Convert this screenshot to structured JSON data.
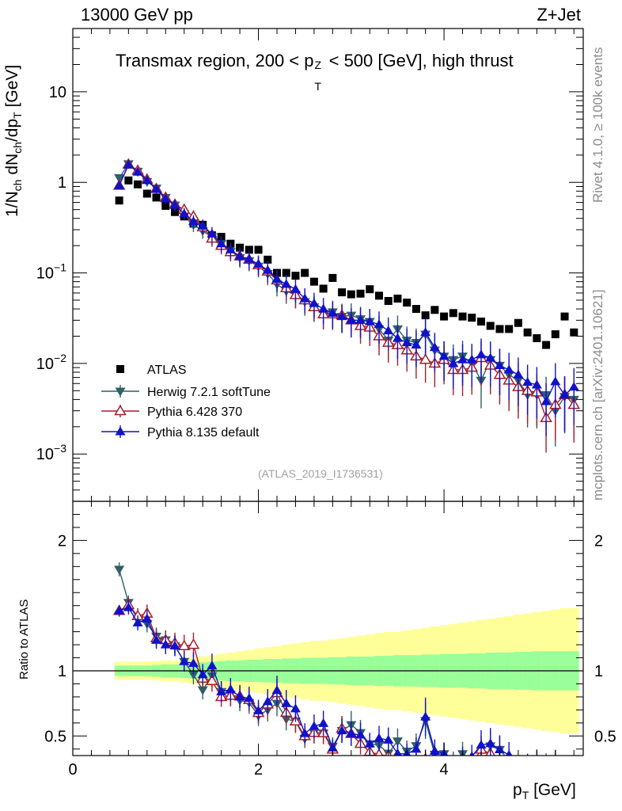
{
  "header": {
    "left": "13000 GeV pp",
    "right": "Z+Jet"
  },
  "side": {
    "rivet": "Rivet 4.1.0, ≥ 100k events",
    "mcplots": "mcplots.cern.ch [arXiv:2401.10621]"
  },
  "chart_data": {
    "type": "scatter",
    "title": "Transmax region, 200 < p_T^Z < 500 [GeV], high thrust",
    "xlabel": "p_T [GeV]",
    "ylabel": "1/N_ch dN_ch/dp_T [GeV]",
    "ratio_ylabel": "Ratio to ATLAS",
    "analysis_id": "(ATLAS_2019_I1736531)",
    "xlim": [
      0,
      5.5
    ],
    "ylim": [
      0.0003,
      50
    ],
    "ratio_ylim": [
      0.35,
      2.3
    ],
    "x_ticks": [
      "0",
      "2",
      "4"
    ],
    "y_ticks": [
      "10^-3",
      "10^-2",
      "10^-1",
      "1",
      "10"
    ],
    "ratio_ticks": [
      "0.5",
      "1",
      "2"
    ],
    "x": [
      0.5,
      0.6,
      0.7,
      0.8,
      0.9,
      1.0,
      1.1,
      1.2,
      1.3,
      1.4,
      1.5,
      1.6,
      1.7,
      1.8,
      1.9,
      2.0,
      2.1,
      2.2,
      2.3,
      2.4,
      2.5,
      2.6,
      2.7,
      2.8,
      2.9,
      3.0,
      3.1,
      3.2,
      3.3,
      3.4,
      3.5,
      3.6,
      3.7,
      3.8,
      3.9,
      4.0,
      4.1,
      4.2,
      4.3,
      4.4,
      4.5,
      4.6,
      4.7,
      4.8,
      4.9,
      5.0,
      5.1,
      5.2,
      5.3,
      5.4
    ],
    "series": [
      {
        "name": "ATLAS",
        "color": "#000000",
        "marker": "square",
        "values": [
          0.63,
          1.05,
          0.95,
          0.75,
          0.68,
          0.55,
          0.47,
          0.42,
          0.35,
          0.34,
          0.26,
          0.25,
          0.21,
          0.19,
          0.18,
          0.18,
          0.14,
          0.1,
          0.1,
          0.093,
          0.1,
          0.08,
          0.067,
          0.088,
          0.061,
          0.058,
          0.059,
          0.066,
          0.056,
          0.049,
          0.052,
          0.047,
          0.04,
          0.034,
          0.039,
          0.033,
          0.036,
          0.033,
          0.032,
          0.029,
          0.026,
          0.024,
          0.024,
          0.028,
          0.022,
          0.019,
          0.016,
          0.021,
          0.033,
          0.022
        ]
      },
      {
        "name": "Herwig 7.2.1 softTune",
        "color": "#2f5f67",
        "marker": "triangle-down",
        "values": [
          1.12,
          1.6,
          1.32,
          1.02,
          0.86,
          0.68,
          0.56,
          0.45,
          0.34,
          0.29,
          0.25,
          0.21,
          0.172,
          0.147,
          0.136,
          0.118,
          0.098,
          0.075,
          0.063,
          0.057,
          0.048,
          0.042,
          0.035,
          0.037,
          0.033,
          0.034,
          0.031,
          0.029,
          0.024,
          0.018,
          0.024,
          0.018,
          0.017,
          0.021,
          0.014,
          0.012,
          0.011,
          0.012,
          0.01,
          0.0065,
          0.011,
          0.0095,
          0.0075,
          0.0065,
          0.0045,
          0.0045,
          0.0045,
          0.003,
          0.0043,
          0.004
        ]
      },
      {
        "name": "Pythia 6.428 370",
        "color": "#a31e2a",
        "marker": "triangle-open",
        "values": [
          0.92,
          1.58,
          1.35,
          1.08,
          0.85,
          0.68,
          0.57,
          0.5,
          0.42,
          0.32,
          0.24,
          0.2,
          0.17,
          0.153,
          0.14,
          0.122,
          0.104,
          0.083,
          0.068,
          0.057,
          0.05,
          0.042,
          0.035,
          0.035,
          0.034,
          0.03,
          0.026,
          0.025,
          0.02,
          0.017,
          0.016,
          0.014,
          0.012,
          0.011,
          0.01,
          0.011,
          0.0085,
          0.0085,
          0.009,
          0.0115,
          0.0095,
          0.0075,
          0.0065,
          0.0055,
          0.005,
          0.0048,
          0.0025,
          0.0035,
          0.0045,
          0.0035
        ]
      },
      {
        "name": "Pythia 8.135 default",
        "color": "#1111cc",
        "marker": "triangle-up",
        "values": [
          0.92,
          1.56,
          1.3,
          1.05,
          0.84,
          0.66,
          0.56,
          0.45,
          0.37,
          0.33,
          0.27,
          0.21,
          0.18,
          0.152,
          0.142,
          0.125,
          0.107,
          0.085,
          0.075,
          0.066,
          0.052,
          0.046,
          0.04,
          0.036,
          0.033,
          0.03,
          0.03,
          0.029,
          0.027,
          0.023,
          0.019,
          0.017,
          0.016,
          0.022,
          0.015,
          0.012,
          0.01,
          0.011,
          0.011,
          0.0125,
          0.0115,
          0.0095,
          0.0085,
          0.0075,
          0.0062,
          0.0058,
          0.0038,
          0.0063,
          0.0045,
          0.0055
        ]
      }
    ],
    "ratio_band": {
      "inner_half_width": [
        0.04,
        0.04,
        0.04,
        0.04,
        0.045,
        0.05,
        0.05,
        0.055,
        0.06,
        0.065,
        0.07,
        0.075,
        0.08,
        0.08,
        0.085,
        0.085,
        0.09,
        0.09,
        0.095,
        0.095,
        0.1,
        0.1,
        0.1,
        0.105,
        0.105,
        0.11,
        0.11,
        0.11,
        0.115,
        0.115,
        0.12,
        0.12,
        0.12,
        0.125,
        0.125,
        0.13,
        0.13,
        0.13,
        0.135,
        0.135,
        0.14,
        0.14,
        0.14,
        0.145,
        0.145,
        0.15,
        0.15,
        0.15,
        0.15,
        0.15
      ],
      "outer_half_width": [
        0.07,
        0.07,
        0.07,
        0.07,
        0.075,
        0.08,
        0.08,
        0.09,
        0.1,
        0.11,
        0.12,
        0.13,
        0.14,
        0.15,
        0.16,
        0.17,
        0.18,
        0.19,
        0.2,
        0.21,
        0.22,
        0.23,
        0.23,
        0.24,
        0.25,
        0.26,
        0.27,
        0.28,
        0.29,
        0.3,
        0.3,
        0.31,
        0.32,
        0.33,
        0.34,
        0.35,
        0.36,
        0.37,
        0.38,
        0.39,
        0.4,
        0.41,
        0.42,
        0.43,
        0.44,
        0.45,
        0.46,
        0.47,
        0.48,
        0.48
      ]
    }
  }
}
